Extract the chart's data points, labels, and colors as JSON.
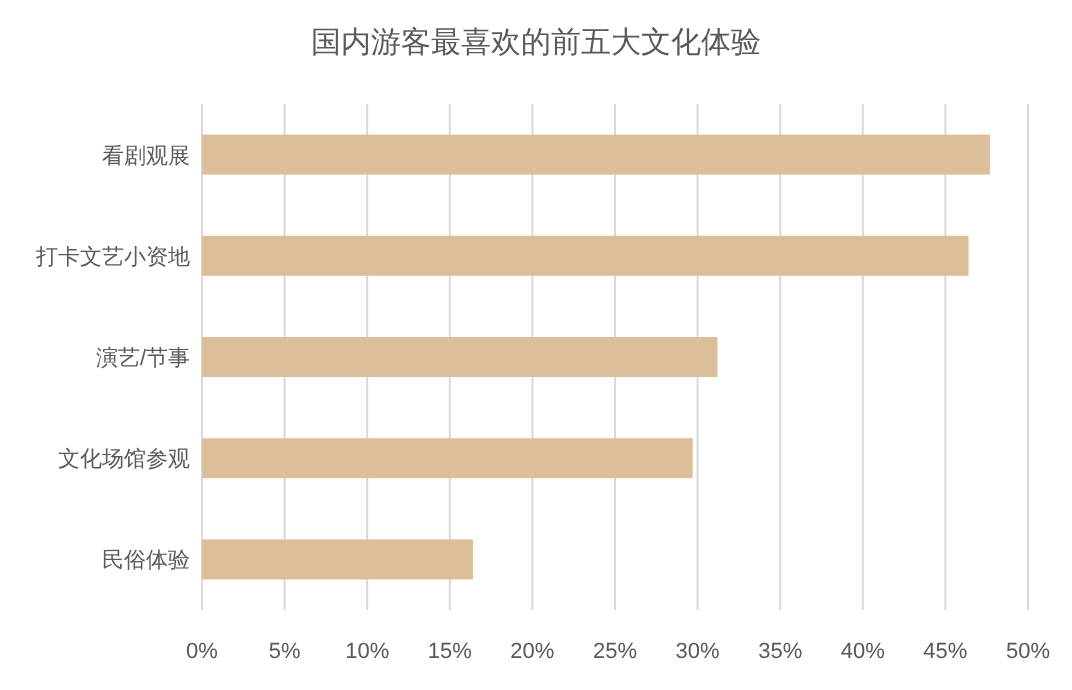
{
  "chart_data": {
    "type": "bar",
    "orientation": "horizontal",
    "title": "国内游客最喜欢的前五大文化体验",
    "categories": [
      "看剧观展",
      "打卡文艺小资地",
      "演艺/节事",
      "文化场馆参观",
      "民俗体验"
    ],
    "values": [
      47.7,
      46.4,
      31.2,
      29.7,
      16.4
    ],
    "color": "#dcbf99",
    "xlim": [
      0,
      50
    ],
    "xticks": [
      {
        "value": 0,
        "label": "0%"
      },
      {
        "value": 5,
        "label": "5%"
      },
      {
        "value": 10,
        "label": "10%"
      },
      {
        "value": 15,
        "label": "15%"
      },
      {
        "value": 20,
        "label": "20%"
      },
      {
        "value": 25,
        "label": "25%"
      },
      {
        "value": 30,
        "label": "30%"
      },
      {
        "value": 35,
        "label": "35%"
      },
      {
        "value": 40,
        "label": "40%"
      },
      {
        "value": 45,
        "label": "45%"
      },
      {
        "value": 50,
        "label": "50%"
      }
    ],
    "grid": "x"
  }
}
